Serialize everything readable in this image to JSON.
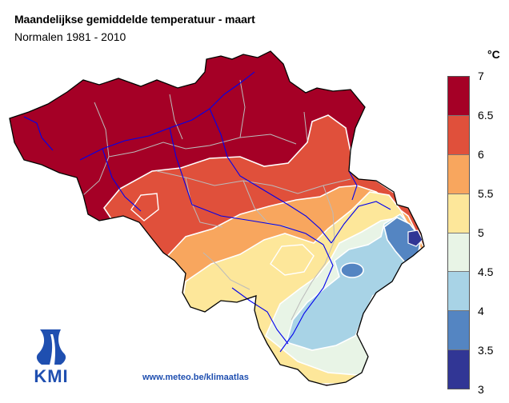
{
  "header": {
    "title": "Maandelijkse gemiddelde temperatuur - maart",
    "subtitle": "Normalen 1981 - 2010"
  },
  "legend": {
    "unit": "°C",
    "ticks": [
      "7",
      "6.5",
      "6",
      "5.5",
      "5",
      "4.5",
      "4",
      "3.5",
      "3"
    ],
    "bins": [
      {
        "range": "6.5-7",
        "color": "#a50026"
      },
      {
        "range": "6-6.5",
        "color": "#e0503b"
      },
      {
        "range": "5.5-6",
        "color": "#f8a65e"
      },
      {
        "range": "5-5.5",
        "color": "#fde79a"
      },
      {
        "range": "4.5-5",
        "color": "#e8f4e6"
      },
      {
        "range": "4-4.5",
        "color": "#a8d3e6"
      },
      {
        "range": "3.5-4",
        "color": "#5485c2"
      },
      {
        "range": "3-3.5",
        "color": "#313695"
      }
    ]
  },
  "branding": {
    "logo_text": "KMI",
    "url": "www.meteo.be/klimaatlas",
    "brand_color": "#1f4fb0"
  },
  "map_colors": {
    "river": "#0000ee",
    "region_border": "#bbbbbb",
    "isotherm": "#ffffff",
    "country_border": "#000000"
  }
}
